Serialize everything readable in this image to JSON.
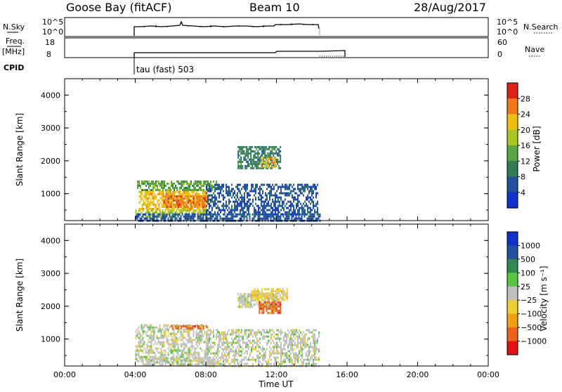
{
  "header": {
    "station": "Goose Bay (fitACF)",
    "beam": "Beam 10",
    "date": "28/Aug/2017"
  },
  "params": {
    "nsky_label": "N.Sky",
    "nsky_ticks": [
      "10^5",
      "10^0"
    ],
    "nsearch_label": "N.Search",
    "freq_label_1": "Freq.",
    "freq_label_2": "[MHz]",
    "freq_ticks": [
      "18",
      "8"
    ],
    "nave_ticks": [
      "60",
      "0"
    ],
    "nave_label": "Nave",
    "cpid_label": "CPID",
    "cpid_text": "tau (fast) 503"
  },
  "axes": {
    "xlabel": "Time UT",
    "xticks": [
      "00:00",
      "04:00",
      "08:00",
      "12:00",
      "16:00",
      "20:00",
      "00:00"
    ],
    "ylabel": "Slant Range [km]",
    "yticks": [
      "4000",
      "3000",
      "2000",
      "1000"
    ]
  },
  "colorbars": {
    "power": {
      "label": "Power [dB]",
      "ticks": [
        "28",
        "24",
        "20",
        "16",
        "12",
        "8",
        "4"
      ]
    },
    "velocity": {
      "label": "Velocity [m s⁻¹]",
      "ticks": [
        "1000",
        "500",
        "100",
        "25",
        "−25",
        "−100",
        "−500",
        "−1000"
      ]
    }
  },
  "chart_data": [
    {
      "type": "heatmap",
      "title": "Power",
      "xlabel": "Time UT",
      "ylabel": "Slant Range [km]",
      "xlim": [
        0,
        24
      ],
      "ylim": [
        180,
        4500
      ],
      "colorbar_label": "Power [dB]",
      "colorbar_range": [
        0,
        30
      ],
      "colors": [
        "#1030d0",
        "#2050a0",
        "#2e7d55",
        "#58a840",
        "#a8c820",
        "#f0c010",
        "#f07818",
        "#e02010"
      ],
      "regions": [
        {
          "t": [
            4.0,
            8.1
          ],
          "r": [
            300,
            520
          ],
          "level": 16
        },
        {
          "t": [
            4.2,
            8.0
          ],
          "r": [
            560,
            1080
          ],
          "level": 20
        },
        {
          "t": [
            5.6,
            8.2
          ],
          "r": [
            600,
            950
          ],
          "level": 24
        },
        {
          "t": [
            4.1,
            8.6
          ],
          "r": [
            1100,
            1400
          ],
          "level": 13
        },
        {
          "t": [
            4.0,
            14.5
          ],
          "r": [
            200,
            400
          ],
          "level": 7
        },
        {
          "t": [
            8.0,
            14.3
          ],
          "r": [
            400,
            1300
          ],
          "level": 5
        },
        {
          "t": [
            9.8,
            12.2
          ],
          "r": [
            1800,
            2450
          ],
          "level": 8
        },
        {
          "t": [
            11.1,
            11.9
          ],
          "r": [
            1800,
            2100
          ],
          "level": 20
        }
      ]
    },
    {
      "type": "heatmap",
      "title": "Velocity",
      "xlabel": "Time UT",
      "ylabel": "Slant Range [km]",
      "xlim": [
        0,
        24
      ],
      "ylim": [
        180,
        4500
      ],
      "colorbar_label": "Velocity [m s⁻¹]",
      "colorbar_range": [
        -1000,
        1000
      ],
      "colors": [
        "#e81010",
        "#f06018",
        "#f0a010",
        "#f0d030",
        "#c0c0c0",
        "#58c840",
        "#2e8a50",
        "#2050a0",
        "#1030d0"
      ],
      "regions": [
        {
          "t": [
            4.0,
            8.1
          ],
          "r": [
            300,
            1450
          ],
          "level": 0
        },
        {
          "t": [
            6.0,
            8.0
          ],
          "r": [
            1300,
            1420
          ],
          "level": -700
        },
        {
          "t": [
            4.4,
            8.5
          ],
          "r": [
            200,
            450
          ],
          "level": 60
        },
        {
          "t": [
            8.0,
            14.4
          ],
          "r": [
            200,
            1300
          ],
          "level": 0
        },
        {
          "t": [
            9.8,
            12.1
          ],
          "r": [
            2000,
            2400
          ],
          "level": 0
        },
        {
          "t": [
            11.0,
            12.2
          ],
          "r": [
            1800,
            2150
          ],
          "level": -700
        },
        {
          "t": [
            10.5,
            12.6
          ],
          "r": [
            2200,
            2550
          ],
          "level": -300
        }
      ]
    }
  ]
}
